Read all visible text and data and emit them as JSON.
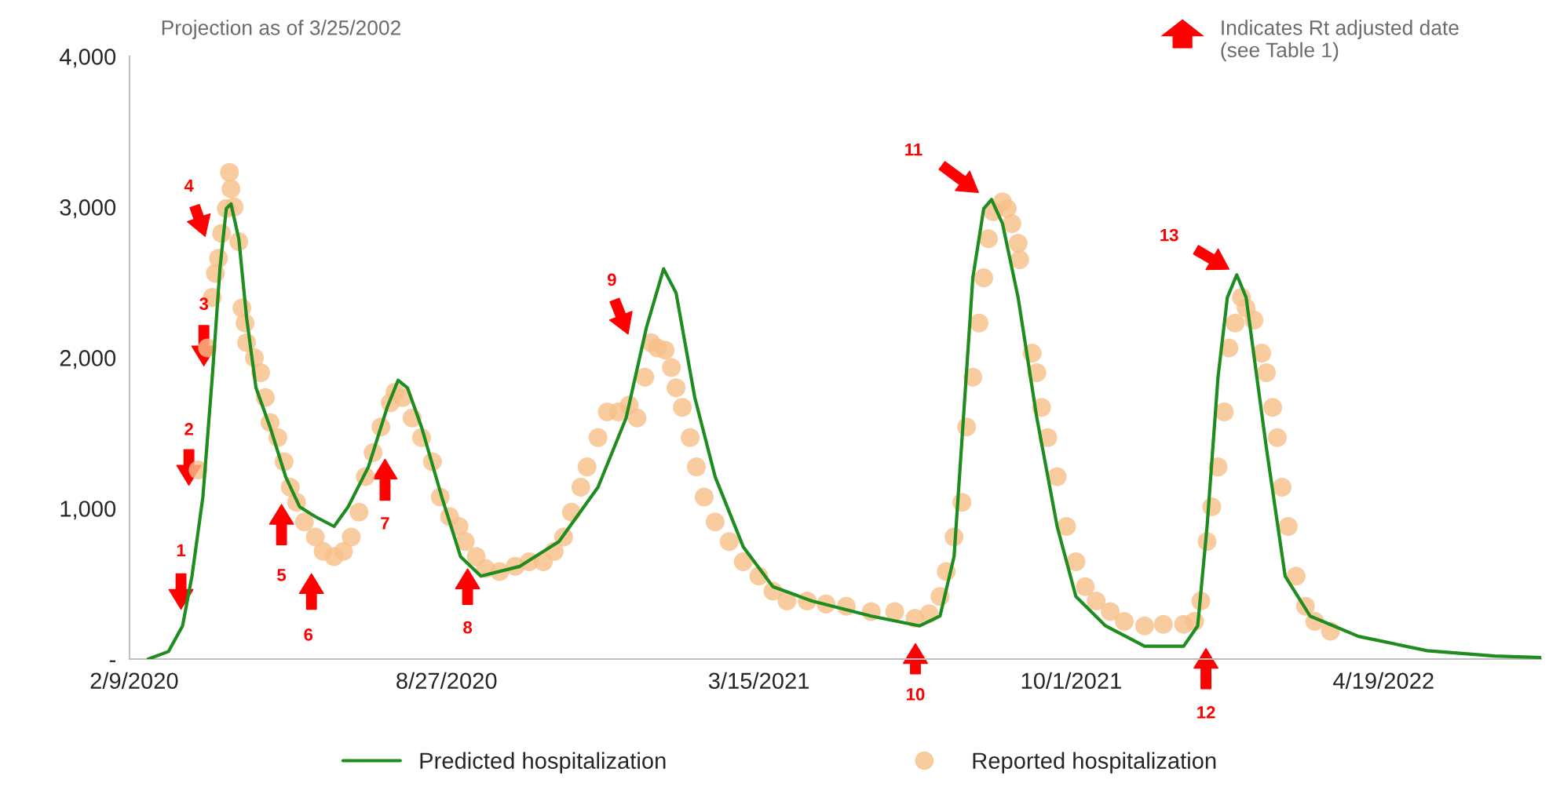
{
  "chart_data": {
    "type": "line",
    "ylim": [
      0,
      4000
    ],
    "yticks": [
      {
        "value": 0,
        "label": "-"
      },
      {
        "value": 1000,
        "label": "1,000"
      },
      {
        "value": 2000,
        "label": "2,000"
      },
      {
        "value": 3000,
        "label": "3,000"
      },
      {
        "value": 4000,
        "label": "4,000"
      }
    ],
    "xlim": [
      "2020-02-06",
      "2022-07-29"
    ],
    "xticks": [
      {
        "value": "2020-02-09",
        "label": "2/9/2020"
      },
      {
        "value": "2020-08-27",
        "label": "8/27/2020"
      },
      {
        "value": "2021-03-15",
        "label": "3/15/2021"
      },
      {
        "value": "2021-10-01",
        "label": "10/1/2021"
      },
      {
        "value": "2022-04-19",
        "label": "4/19/2022"
      }
    ],
    "grid": false,
    "legend": "bottom",
    "series": [
      {
        "name": "Predicted hospitalization",
        "color": "#1e8c1e",
        "marker": "none",
        "line_style": "solid",
        "x": [
          "2020-02-18",
          "2020-03-02",
          "2020-03-11",
          "2020-03-17",
          "2020-03-24",
          "2020-03-30",
          "2020-04-04",
          "2020-04-08",
          "2020-04-11",
          "2020-04-16",
          "2020-04-21",
          "2020-04-27",
          "2020-05-06",
          "2020-05-16",
          "2020-05-25",
          "2020-06-04",
          "2020-06-16",
          "2020-06-25",
          "2020-07-08",
          "2020-07-20",
          "2020-07-27",
          "2020-08-02",
          "2020-08-11",
          "2020-08-24",
          "2020-09-05",
          "2020-09-18",
          "2020-10-13",
          "2020-11-07",
          "2020-12-02",
          "2020-12-20",
          "2021-01-02",
          "2021-01-13",
          "2021-01-21",
          "2021-02-02",
          "2021-02-15",
          "2021-03-05",
          "2021-03-24",
          "2021-04-18",
          "2021-05-26",
          "2021-06-26",
          "2021-07-09",
          "2021-07-18",
          "2021-07-24",
          "2021-07-30",
          "2021-08-06",
          "2021-08-11",
          "2021-08-18",
          "2021-08-28",
          "2021-09-09",
          "2021-09-22",
          "2021-10-04",
          "2021-10-23",
          "2021-11-17",
          "2021-12-12",
          "2021-12-21",
          "2021-12-27",
          "2022-01-03",
          "2022-01-09",
          "2022-01-15",
          "2022-01-21",
          "2022-02-03",
          "2022-02-15",
          "2022-03-03",
          "2022-04-03",
          "2022-05-17",
          "2022-06-29",
          "2022-07-29"
        ],
        "values": [
          0,
          50,
          220,
          550,
          1075,
          1870,
          2600,
          2990,
          3020,
          2790,
          2265,
          1800,
          1540,
          1210,
          1010,
          945,
          880,
          1010,
          1275,
          1670,
          1850,
          1800,
          1540,
          1075,
          680,
          550,
          615,
          780,
          1140,
          1600,
          2200,
          2590,
          2430,
          1735,
          1210,
          745,
          480,
          385,
          285,
          220,
          285,
          680,
          1600,
          2530,
          2990,
          3050,
          2890,
          2400,
          1600,
          880,
          415,
          220,
          85,
          85,
          220,
          880,
          1870,
          2400,
          2550,
          2400,
          1400,
          550,
          285,
          150,
          55,
          20,
          10
        ]
      },
      {
        "name": "Reported hospitalization",
        "type": "scatter",
        "color": "#f8bf88",
        "marker": "circle",
        "x": [
          "2020-03-21",
          "2020-03-27",
          "2020-03-30",
          "2020-04-01",
          "2020-04-03",
          "2020-04-05",
          "2020-04-08",
          "2020-04-10",
          "2020-04-11",
          "2020-04-13",
          "2020-04-16",
          "2020-04-18",
          "2020-04-20",
          "2020-04-21",
          "2020-04-26",
          "2020-04-30",
          "2020-05-03",
          "2020-05-06",
          "2020-05-11",
          "2020-05-15",
          "2020-05-19",
          "2020-05-23",
          "2020-05-28",
          "2020-06-04",
          "2020-06-09",
          "2020-06-16",
          "2020-06-22",
          "2020-06-27",
          "2020-07-02",
          "2020-07-06",
          "2020-07-11",
          "2020-07-16",
          "2020-07-22",
          "2020-07-25",
          "2020-07-30",
          "2020-08-05",
          "2020-08-11",
          "2020-08-18",
          "2020-08-23",
          "2020-08-29",
          "2020-09-04",
          "2020-09-08",
          "2020-09-15",
          "2020-09-21",
          "2020-09-30",
          "2020-10-10",
          "2020-10-19",
          "2020-10-28",
          "2020-11-04",
          "2020-11-10",
          "2020-11-15",
          "2020-11-21",
          "2020-11-25",
          "2020-12-02",
          "2020-12-08",
          "2020-12-15",
          "2020-12-22",
          "2020-12-27",
          "2021-01-01",
          "2021-01-05",
          "2021-01-09",
          "2021-01-14",
          "2021-01-18",
          "2021-01-21",
          "2021-01-25",
          "2021-01-30",
          "2021-02-03",
          "2021-02-08",
          "2021-02-15",
          "2021-02-24",
          "2021-03-05",
          "2021-03-15",
          "2021-03-24",
          "2021-04-02",
          "2021-04-15",
          "2021-04-27",
          "2021-05-10",
          "2021-05-26",
          "2021-06-10",
          "2021-06-23",
          "2021-07-02",
          "2021-07-09",
          "2021-07-13",
          "2021-07-18",
          "2021-07-23",
          "2021-07-26",
          "2021-07-30",
          "2021-08-03",
          "2021-08-06",
          "2021-08-09",
          "2021-08-12",
          "2021-08-18",
          "2021-08-21",
          "2021-08-24",
          "2021-08-28",
          "2021-08-29",
          "2021-09-06",
          "2021-09-09",
          "2021-09-12",
          "2021-09-16",
          "2021-09-22",
          "2021-09-28",
          "2021-10-04",
          "2021-10-10",
          "2021-10-17",
          "2021-10-26",
          "2021-11-04",
          "2021-11-17",
          "2021-11-29",
          "2021-12-12",
          "2021-12-19",
          "2021-12-23",
          "2021-12-27",
          "2021-12-30",
          "2022-01-03",
          "2022-01-07",
          "2022-01-10",
          "2022-01-14",
          "2022-01-18",
          "2022-01-21",
          "2022-01-26",
          "2022-01-31",
          "2022-02-03",
          "2022-02-07",
          "2022-02-10",
          "2022-02-13",
          "2022-02-17",
          "2022-02-22",
          "2022-02-28",
          "2022-03-06",
          "2022-03-16"
        ],
        "values": [
          1255,
          2065,
          2400,
          2560,
          2660,
          2825,
          2990,
          3230,
          3120,
          3000,
          2770,
          2330,
          2230,
          2100,
          2000,
          1900,
          1735,
          1570,
          1470,
          1310,
          1140,
          1040,
          910,
          810,
          715,
          680,
          715,
          810,
          975,
          1210,
          1370,
          1540,
          1700,
          1770,
          1735,
          1600,
          1470,
          1310,
          1075,
          945,
          880,
          780,
          680,
          600,
          580,
          615,
          645,
          645,
          715,
          810,
          975,
          1140,
          1275,
          1470,
          1640,
          1640,
          1685,
          1600,
          1870,
          2100,
          2065,
          2050,
          1935,
          1800,
          1670,
          1470,
          1275,
          1075,
          910,
          780,
          645,
          550,
          450,
          385,
          385,
          365,
          350,
          315,
          315,
          270,
          300,
          415,
          580,
          810,
          1040,
          1540,
          1870,
          2230,
          2530,
          2790,
          2970,
          3035,
          2990,
          2890,
          2760,
          2650,
          2030,
          1900,
          1670,
          1470,
          1210,
          880,
          645,
          480,
          385,
          315,
          250,
          220,
          230,
          230,
          250,
          385,
          780,
          1010,
          1275,
          1640,
          2065,
          2230,
          2400,
          2330,
          2250,
          2030,
          1900,
          1670,
          1470,
          1140,
          880,
          550,
          350,
          250,
          185
        ]
      }
    ],
    "annotations": [
      "Projection as of 3/25/2002",
      "Indicates Rt adjusted date\n(see Table 1)",
      "1",
      "2",
      "3",
      "4",
      "5",
      "6",
      "7",
      "8",
      "9",
      "10",
      "11",
      "12",
      "13"
    ]
  }
}
